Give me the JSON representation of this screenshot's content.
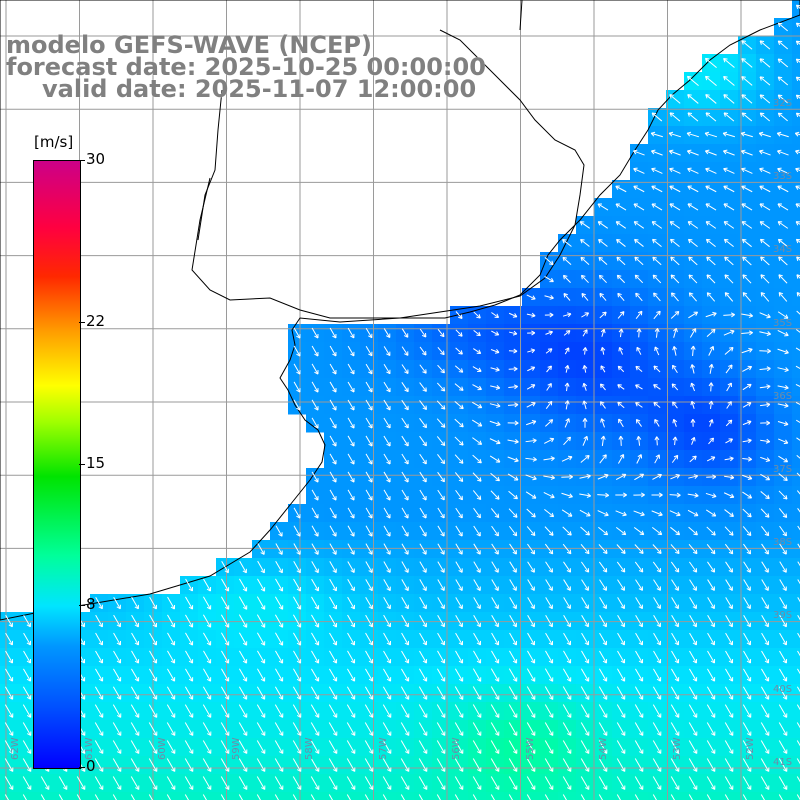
{
  "title": {
    "line1": "modelo GEFS-WAVE (NCEP)",
    "line2": "forecast date: 2025-10-25 00:00:00",
    "line3": "valid date: 2025-11-07 12:00:00"
  },
  "colorbar": {
    "units": "[m/s]",
    "min": 0,
    "max": 30,
    "tick_labels": [
      "30",
      "22",
      "15",
      "8",
      "0"
    ],
    "tick_values": [
      30,
      22,
      15,
      8,
      0
    ]
  },
  "lat_labels": [
    "32S",
    "33S",
    "34S",
    "35S",
    "36S",
    "37S",
    "38S",
    "39S",
    "40S",
    "41S"
  ],
  "lon_labels": [
    "62W",
    "61W",
    "60W",
    "59W",
    "58W",
    "57W",
    "56W",
    "55W",
    "54W",
    "53W",
    "52W"
  ],
  "colors": {
    "land": "#ffffff",
    "coast": "#000000",
    "grid": "#9a9a9a",
    "arrow": "#ffffff",
    "title": "#808080"
  }
}
